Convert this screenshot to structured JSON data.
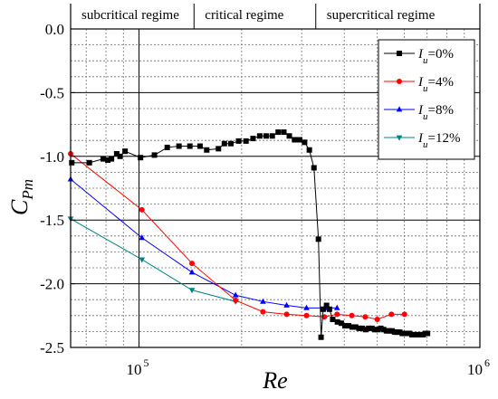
{
  "chart_data": {
    "type": "line",
    "xscale": "log",
    "xlabel": "Re",
    "ylabel": "C",
    "ylabel_sub": "Pm",
    "xlim": [
      63000,
      1000000
    ],
    "ylim": [
      -2.5,
      0.0
    ],
    "y_ticks": [
      "0.0",
      "-0.5",
      "-1.0",
      "-1.5",
      "-2.0",
      "-2.5"
    ],
    "y_tick_values": [
      0.0,
      -0.5,
      -1.0,
      -1.5,
      -2.0,
      -2.5
    ],
    "x_ticks": [
      {
        "value": 100000,
        "base": "10",
        "exp": "5"
      },
      {
        "value": 1000000,
        "base": "10",
        "exp": "6"
      }
    ],
    "grid": true,
    "legend_position": "top-right",
    "regimes": [
      {
        "label": "subcritical regime",
        "from": 63000,
        "to": 145000
      },
      {
        "label": "critical regime",
        "from": 145000,
        "to": 330000
      },
      {
        "label": "supercritical regime",
        "from": 330000,
        "to": 1000000
      }
    ],
    "series": [
      {
        "name_prefix": "I",
        "name_sub": "u",
        "name_suffix": "=0%",
        "color": "#000000",
        "marker": "square",
        "x": [
          63500,
          71500,
          78500,
          81000,
          83000,
          86000,
          88000,
          91000,
          101000,
          111000,
          121000,
          131000,
          141000,
          151000,
          158000,
          171000,
          178000,
          186000,
          196000,
          206000,
          216000,
          226000,
          236000,
          246000,
          256000,
          266000,
          276000,
          286000,
          296000,
          306000,
          316000,
          326000,
          336000,
          342000,
          347000,
          355000,
          362000,
          370000,
          382000,
          392000,
          402000,
          412000,
          422000,
          432000,
          442000,
          452000,
          462000,
          472000,
          482000,
          492000,
          502000,
          512000,
          522000,
          532000,
          542000,
          552000,
          562000,
          572000,
          582000,
          592000,
          602000,
          612000,
          622000,
          632000,
          642000,
          652000,
          662000,
          672000,
          682000,
          692000,
          702000
        ],
        "y": [
          -1.05,
          -1.05,
          -1.02,
          -1.03,
          -1.02,
          -0.98,
          -1.0,
          -0.96,
          -1.01,
          -0.99,
          -0.93,
          -0.92,
          -0.92,
          -0.92,
          -0.95,
          -0.94,
          -0.9,
          -0.9,
          -0.88,
          -0.88,
          -0.86,
          -0.84,
          -0.84,
          -0.84,
          -0.81,
          -0.81,
          -0.84,
          -0.87,
          -0.87,
          -0.89,
          -0.95,
          -1.09,
          -1.65,
          -2.42,
          -2.2,
          -2.17,
          -2.2,
          -2.28,
          -2.3,
          -2.31,
          -2.33,
          -2.33,
          -2.34,
          -2.34,
          -2.35,
          -2.35,
          -2.36,
          -2.35,
          -2.35,
          -2.36,
          -2.36,
          -2.35,
          -2.36,
          -2.37,
          -2.37,
          -2.37,
          -2.38,
          -2.38,
          -2.38,
          -2.39,
          -2.39,
          -2.39,
          -2.39,
          -2.4,
          -2.4,
          -2.4,
          -2.4,
          -2.4,
          -2.4,
          -2.39,
          -2.39
        ]
      },
      {
        "name_prefix": "I",
        "name_sub": "u",
        "name_suffix": "=4%",
        "color": "#ff0000",
        "marker": "circle",
        "x": [
          63000,
          102000,
          143000,
          192000,
          231000,
          271000,
          310000,
          350000,
          381000,
          421000,
          461000,
          500000,
          550000,
          601000
        ],
        "y": [
          -0.98,
          -1.42,
          -1.84,
          -2.13,
          -2.22,
          -2.24,
          -2.25,
          -2.26,
          -2.24,
          -2.25,
          -2.26,
          -2.28,
          -2.24,
          -2.24
        ]
      },
      {
        "name_prefix": "I",
        "name_sub": "u",
        "name_suffix": "=8%",
        "color": "#0000ff",
        "marker": "triangle-up",
        "x": [
          63000,
          102000,
          143000,
          192000,
          231000,
          271000,
          310000,
          350000,
          381000
        ],
        "y": [
          -1.18,
          -1.64,
          -1.91,
          -2.09,
          -2.14,
          -2.17,
          -2.19,
          -2.19,
          -2.19
        ]
      },
      {
        "name_prefix": "I",
        "name_sub": "u",
        "name_suffix": "=12%",
        "color": "#008080",
        "marker": "triangle-down",
        "x": [
          63000,
          102000,
          143000,
          192000
        ],
        "y": [
          -1.49,
          -1.81,
          -2.05,
          -2.14
        ]
      }
    ]
  }
}
